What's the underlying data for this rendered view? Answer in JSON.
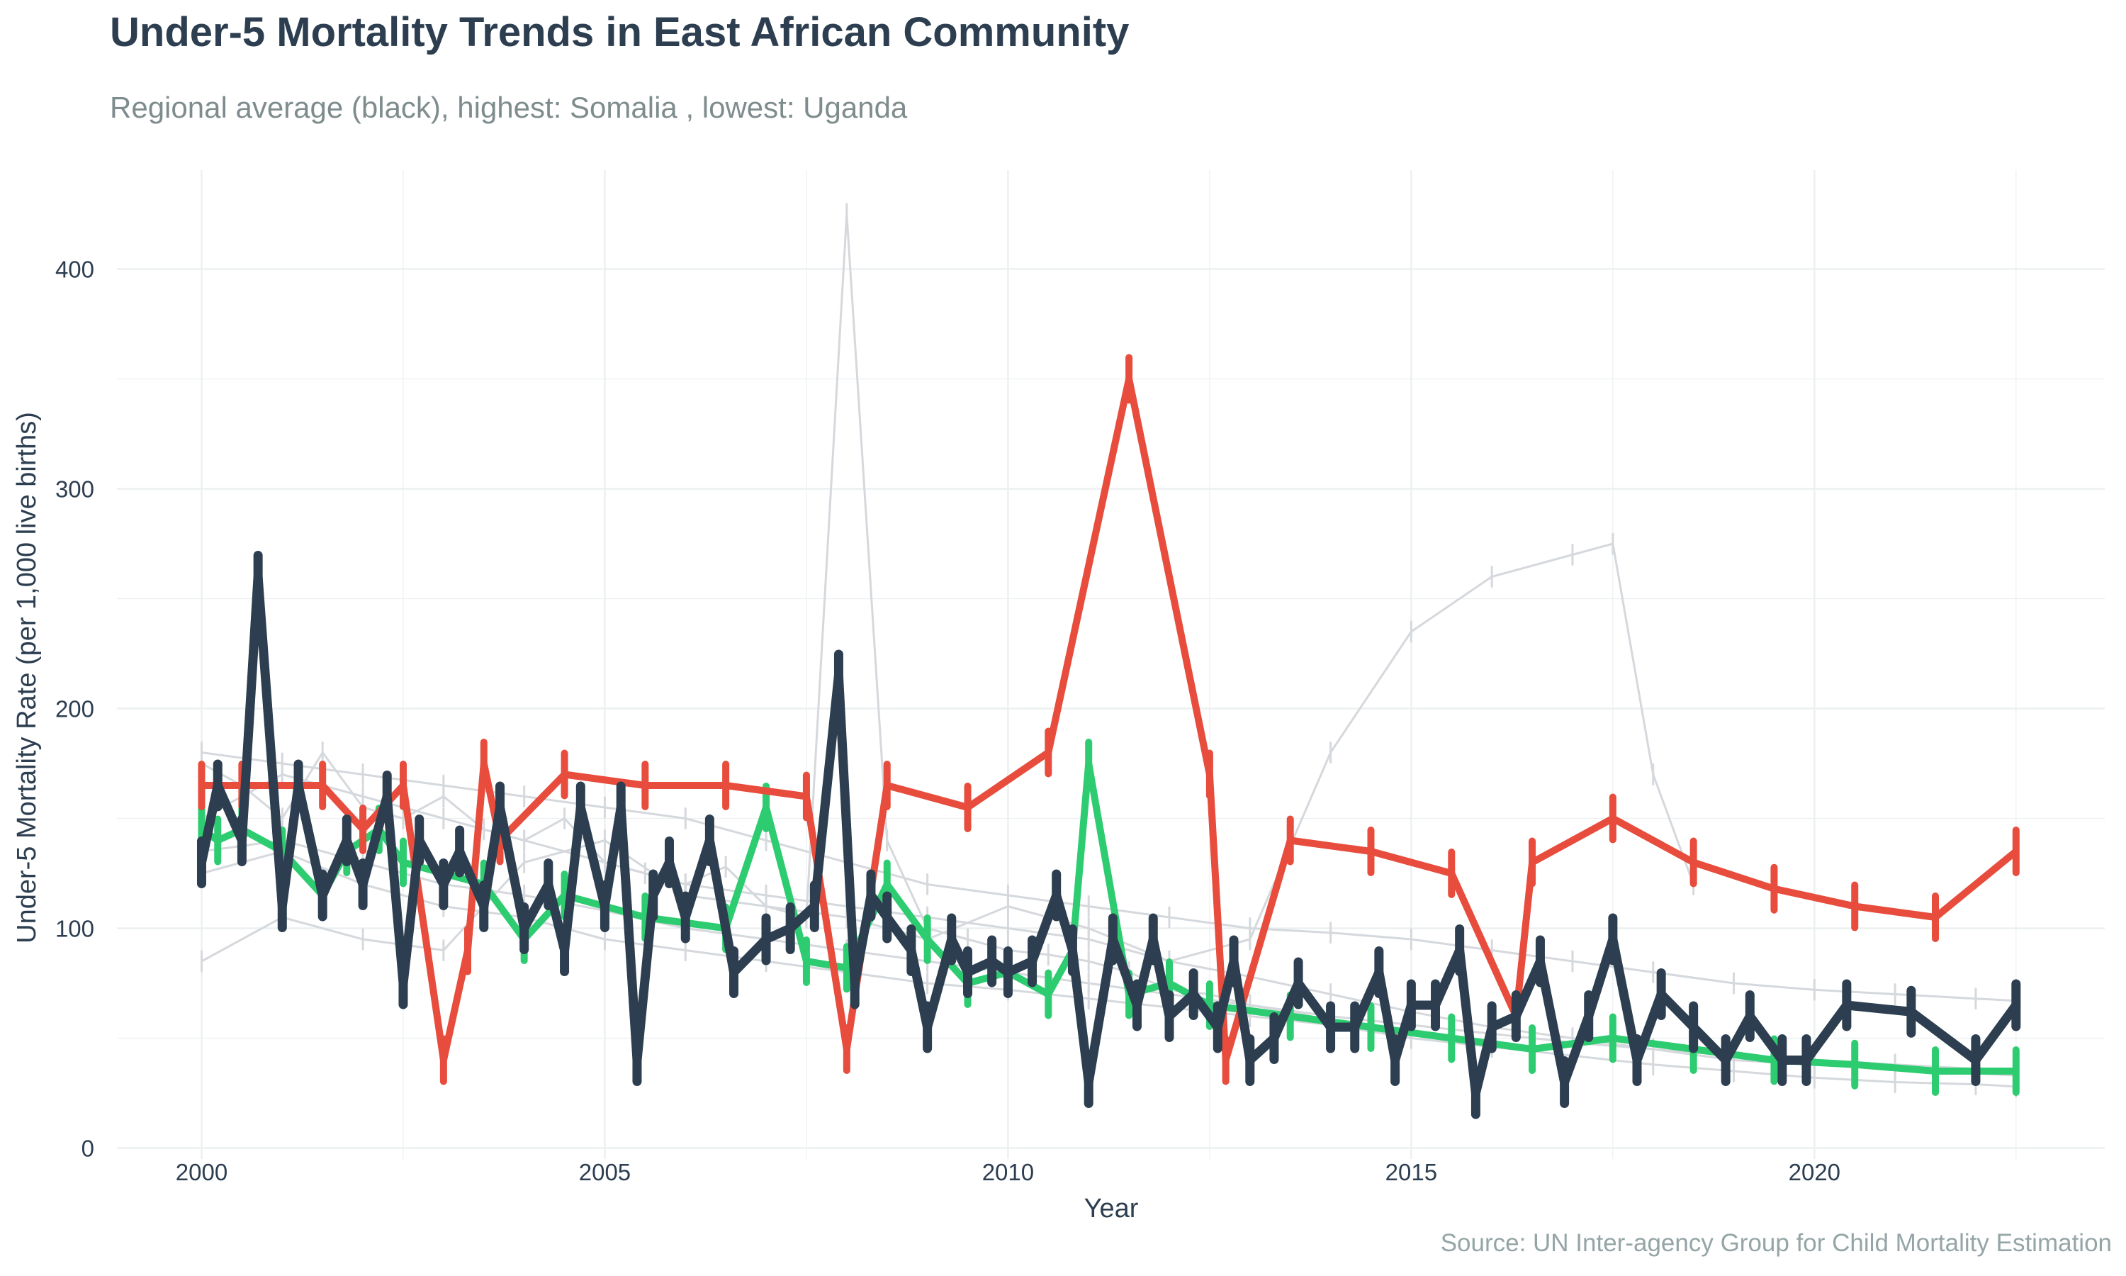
{
  "chart_data": {
    "type": "line",
    "title": "Under-5 Mortality Trends in East African Community",
    "subtitle": "Regional average (black), highest: Somalia , lowest: Uganda",
    "caption": "Source: UN Inter-agency Group for Child Mortality Estimation",
    "xlabel": "Year",
    "ylabel": "Under-5 Mortality Rate (per 1,000 live births)",
    "xlim": [
      1998.95,
      2023.6
    ],
    "ylim": [
      -5,
      445
    ],
    "x_ticks": [
      2000,
      2005,
      2010,
      2015,
      2020
    ],
    "y_ticks": [
      0,
      100,
      200,
      300,
      400
    ],
    "grid": true,
    "legend": "none",
    "colors": {
      "average": "#2c3e50",
      "highest": "#e74c3c",
      "lowest": "#2ecc71",
      "other": "#d5d8dc",
      "grid": "#ecf0f1"
    },
    "series": [
      {
        "role": "other",
        "x": [
          2000.0,
          2000.5,
          2001.0,
          2001.5,
          2002.0,
          2002.5,
          2003.0,
          2003.5,
          2004.0,
          2004.5,
          2005.0,
          2005.5,
          2006.0,
          2006.5,
          2007.0,
          2007.5,
          2008.0,
          2008.5,
          2009.0,
          2009.5,
          2010.0,
          2010.5,
          2011.0,
          2011.5,
          2012.0,
          2012.5,
          2013.0,
          2013.5,
          2014.0,
          2014.5
        ],
        "y": [
          175,
          165,
          150,
          180,
          155,
          150,
          160,
          145,
          140,
          150,
          130,
          125,
          120,
          128,
          110,
          105,
          425,
          140,
          100,
          95,
          90,
          88,
          85,
          80,
          72,
          70,
          65,
          62,
          58,
          55
        ]
      },
      {
        "role": "other",
        "x": [
          2000.0,
          2001.0,
          2002.0,
          2003.0,
          2004.0,
          2005.0,
          2006.0,
          2007.0,
          2008.0,
          2009.0,
          2010.0,
          2011.0,
          2012.0,
          2013.0,
          2014.0,
          2015.0,
          2016.0,
          2017.0,
          2017.5,
          2018.0,
          2018.5
        ],
        "y": [
          85,
          105,
          95,
          90,
          130,
          140,
          115,
          110,
          105,
          95,
          110,
          100,
          85,
          95,
          180,
          235,
          260,
          270,
          275,
          170,
          120
        ]
      },
      {
        "role": "other",
        "x": [
          2000.0,
          2001.0,
          2002.0,
          2003.0,
          2004.0,
          2005.0,
          2006.0,
          2007.0,
          2008.0,
          2009.0,
          2010.0,
          2011.0,
          2012.0,
          2013.0,
          2014.0,
          2015.0,
          2016.0,
          2017.0,
          2018.0,
          2019.0,
          2020.0,
          2021.0,
          2022.0,
          2022.5
        ],
        "y": [
          150,
          170,
          160,
          150,
          140,
          130,
          120,
          115,
          110,
          105,
          100,
          95,
          85,
          78,
          70,
          62,
          55,
          50,
          45,
          40,
          38,
          36,
          34,
          33
        ]
      },
      {
        "role": "other",
        "x": [
          2000.0,
          2001.0,
          2002.0,
          2003.0,
          2004.0,
          2005.0,
          2006.0,
          2007.0,
          2008.0,
          2009.0,
          2010.0,
          2011.0,
          2012.0,
          2013.0,
          2014.0,
          2015.0,
          2016.0,
          2017.0,
          2018.0,
          2019.0,
          2020.0,
          2021.0,
          2022.0,
          2022.5
        ],
        "y": [
          125,
          135,
          120,
          110,
          105,
          95,
          90,
          85,
          80,
          75,
          72,
          68,
          64,
          60,
          56,
          50,
          46,
          42,
          38,
          35,
          32,
          30,
          29,
          28
        ]
      },
      {
        "role": "other",
        "x": [
          2000.0,
          2001.0,
          2002.0,
          2003.0,
          2004.0,
          2005.0,
          2006.0,
          2007.0,
          2008.0,
          2009.0,
          2010.0,
          2011.0,
          2012.0,
          2013.0,
          2014.0,
          2015.0,
          2016.0,
          2017.0,
          2018.0,
          2019.0,
          2020.0,
          2021.0,
          2022.0,
          2022.5
        ],
        "y": [
          180,
          175,
          170,
          165,
          160,
          155,
          150,
          140,
          130,
          120,
          115,
          110,
          105,
          100,
          98,
          95,
          90,
          85,
          80,
          75,
          72,
          70,
          68,
          67
        ]
      },
      {
        "role": "other",
        "x": [
          2000.0,
          2001.0,
          2002.0,
          2003.0,
          2004.0,
          2005.0,
          2006.0,
          2007.0,
          2008.0,
          2009.0,
          2010.0,
          2011.0,
          2012.0,
          2013.0,
          2014.0,
          2015.0,
          2016.0,
          2017.0,
          2018.0,
          2019.0,
          2020.0,
          2021.0,
          2022.0,
          2022.5
        ],
        "y": [
          135,
          140,
          130,
          120,
          115,
          108,
          100,
          95,
          90,
          85,
          80,
          75,
          70,
          65,
          60,
          56,
          52,
          48,
          45,
          42,
          40,
          38,
          36,
          35
        ]
      },
      {
        "role": "average",
        "x": [
          2000.0,
          2000.2,
          2000.5,
          2000.7,
          2001.0,
          2001.2,
          2001.5,
          2001.8,
          2002.0,
          2002.3,
          2002.5,
          2002.7,
          2003.0,
          2003.2,
          2003.5,
          2003.7,
          2004.0,
          2004.3,
          2004.5,
          2004.7,
          2005.0,
          2005.2,
          2005.4,
          2005.6,
          2005.8,
          2006.0,
          2006.3,
          2006.6,
          2007.0,
          2007.3,
          2007.6,
          2007.9,
          2008.1,
          2008.3,
          2008.5,
          2008.8,
          2009.0,
          2009.3,
          2009.5,
          2009.8,
          2010.0,
          2010.3,
          2010.6,
          2010.8,
          2011.0,
          2011.3,
          2011.6,
          2011.8,
          2012.0,
          2012.3,
          2012.6,
          2012.8,
          2013.0,
          2013.3,
          2013.6,
          2014.0,
          2014.3,
          2014.6,
          2014.8,
          2015.0,
          2015.3,
          2015.6,
          2015.8,
          2016.0,
          2016.3,
          2016.6,
          2016.9,
          2017.2,
          2017.5,
          2017.8,
          2018.1,
          2018.5,
          2018.9,
          2019.2,
          2019.6,
          2019.9,
          2020.4,
          2021.2,
          2022.0,
          2022.5
        ],
        "y": [
          130,
          165,
          140,
          260,
          110,
          165,
          115,
          140,
          120,
          160,
          75,
          140,
          120,
          135,
          110,
          155,
          100,
          120,
          90,
          155,
          110,
          155,
          40,
          115,
          130,
          105,
          140,
          80,
          95,
          100,
          110,
          215,
          75,
          115,
          105,
          90,
          55,
          95,
          80,
          85,
          80,
          85,
          115,
          90,
          30,
          95,
          65,
          95,
          60,
          70,
          55,
          85,
          40,
          50,
          75,
          55,
          55,
          80,
          40,
          65,
          65,
          90,
          25,
          55,
          60,
          85,
          30,
          60,
          95,
          40,
          70,
          55,
          40,
          60,
          40,
          40,
          65,
          62,
          40,
          65
        ]
      },
      {
        "role": "highest",
        "x": [
          2000.0,
          2000.5,
          2001.5,
          2002.0,
          2002.5,
          2003.0,
          2003.3,
          2003.5,
          2003.7,
          2004.5,
          2005.5,
          2006.5,
          2007.5,
          2008.0,
          2008.5,
          2009.5,
          2010.5,
          2011.5,
          2012.5,
          2012.7,
          2013.5,
          2014.5,
          2015.5,
          2016.3,
          2016.5,
          2017.5,
          2018.5,
          2019.5,
          2020.5,
          2021.5,
          2022.5
        ],
        "y": [
          165,
          165,
          165,
          145,
          165,
          40,
          90,
          175,
          140,
          170,
          165,
          165,
          160,
          45,
          165,
          155,
          180,
          350,
          170,
          40,
          140,
          135,
          125,
          60,
          130,
          150,
          130,
          118,
          110,
          105,
          135
        ]
      },
      {
        "role": "lowest",
        "x": [
          2000.0,
          2000.2,
          2000.5,
          2001.0,
          2001.5,
          2001.8,
          2002.2,
          2002.5,
          2003.5,
          2004.0,
          2004.5,
          2005.5,
          2006.5,
          2007.0,
          2007.5,
          2008.0,
          2008.5,
          2009.0,
          2009.5,
          2010.0,
          2010.5,
          2010.8,
          2011.0,
          2011.5,
          2012.0,
          2012.5,
          2013.5,
          2014.5,
          2015.5,
          2016.5,
          2017.5,
          2018.5,
          2019.5,
          2020.5,
          2021.5,
          2022.5
        ],
        "y": [
          145,
          140,
          145,
          135,
          115,
          135,
          145,
          130,
          120,
          95,
          115,
          105,
          100,
          155,
          85,
          82,
          120,
          95,
          75,
          80,
          70,
          90,
          175,
          70,
          75,
          65,
          60,
          55,
          50,
          45,
          50,
          45,
          40,
          38,
          35,
          35
        ]
      }
    ]
  }
}
